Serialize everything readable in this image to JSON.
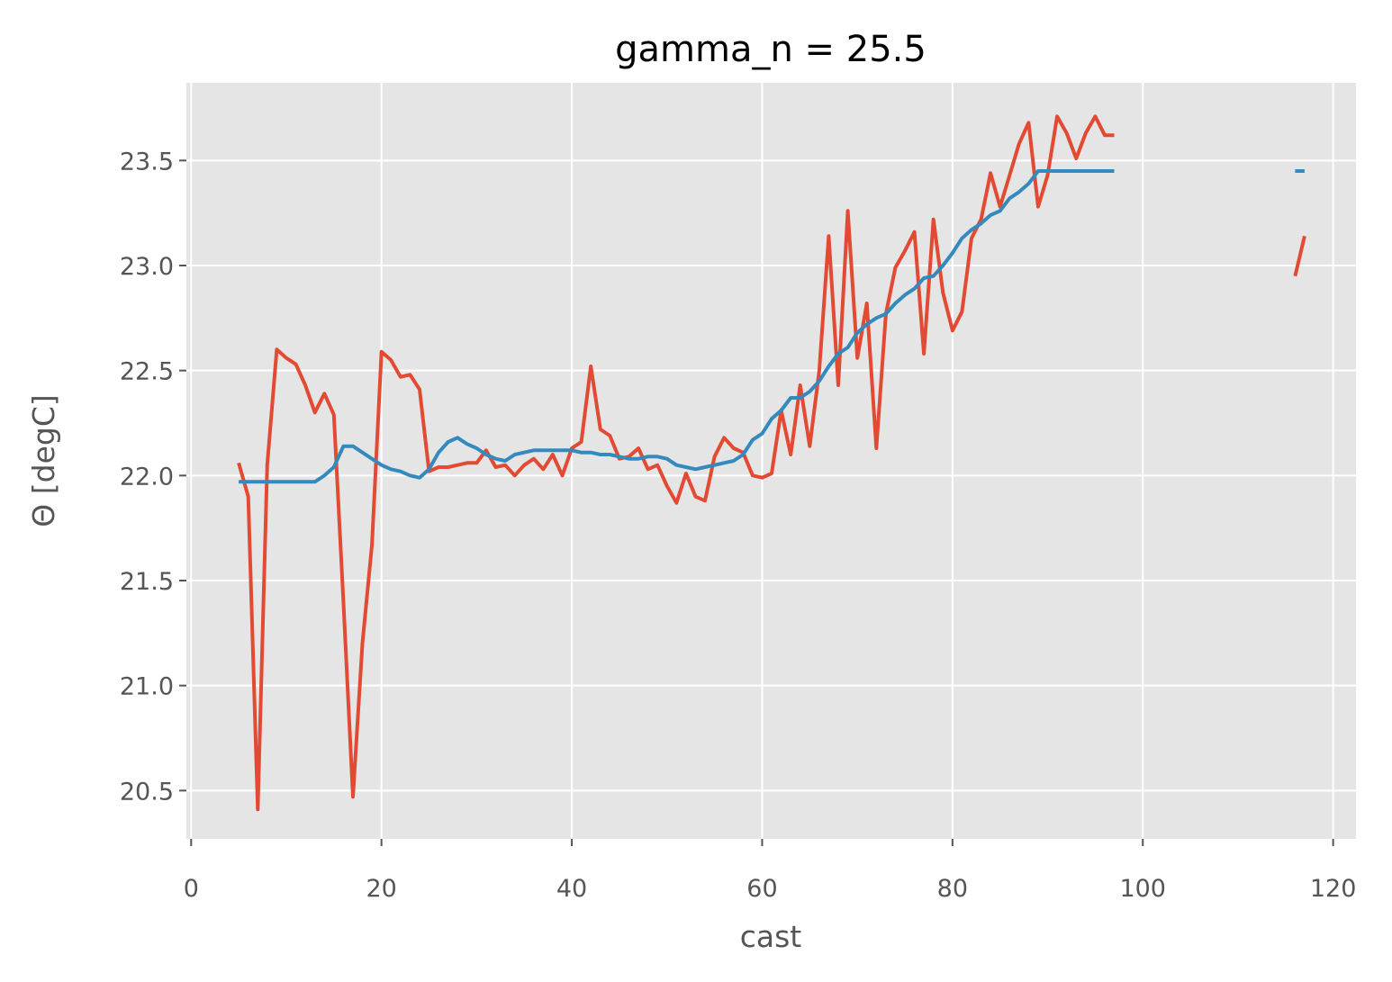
{
  "chart_data": {
    "type": "line",
    "title": "gamma_n = 25.5",
    "xlabel": "cast",
    "ylabel": "Θ [degC]",
    "x": [
      5,
      6,
      7,
      8,
      9,
      10,
      11,
      12,
      13,
      14,
      15,
      16,
      17,
      18,
      19,
      20,
      21,
      22,
      23,
      24,
      25,
      26,
      27,
      28,
      29,
      30,
      31,
      32,
      33,
      34,
      35,
      36,
      37,
      38,
      39,
      40,
      41,
      42,
      43,
      44,
      45,
      46,
      47,
      48,
      49,
      50,
      51,
      52,
      53,
      54,
      55,
      56,
      57,
      58,
      59,
      60,
      61,
      62,
      63,
      64,
      65,
      66,
      67,
      68,
      69,
      70,
      71,
      72,
      73,
      74,
      75,
      76,
      77,
      78,
      79,
      80,
      81,
      82,
      83,
      84,
      85,
      86,
      87,
      88,
      89,
      90,
      91,
      92,
      93,
      94,
      95,
      96,
      97,
      98,
      99,
      100,
      101,
      102,
      103,
      104,
      105,
      106,
      107,
      108,
      109,
      110,
      111,
      112,
      113,
      114,
      115,
      116,
      117
    ],
    "series": [
      {
        "color": "#E24A33",
        "values": [
          22.06,
          21.9,
          20.41,
          22.05,
          22.6,
          22.56,
          22.53,
          22.43,
          22.3,
          22.39,
          22.29,
          21.4,
          20.47,
          21.2,
          21.67,
          22.59,
          22.55,
          22.47,
          22.48,
          22.41,
          22.02,
          22.04,
          22.04,
          22.05,
          22.06,
          22.06,
          22.12,
          22.04,
          22.05,
          22.0,
          22.05,
          22.08,
          22.03,
          22.1,
          22.0,
          22.13,
          22.16,
          22.52,
          22.22,
          22.19,
          22.08,
          22.09,
          22.13,
          22.03,
          22.05,
          21.95,
          21.87,
          22.01,
          21.9,
          21.88,
          22.09,
          22.18,
          22.13,
          22.11,
          22.0,
          21.99,
          22.01,
          22.31,
          22.1,
          22.43,
          22.14,
          22.5,
          23.14,
          22.43,
          23.26,
          22.56,
          22.82,
          22.13,
          22.77,
          22.99,
          23.07,
          23.16,
          22.58,
          23.22,
          22.87,
          22.69,
          22.78,
          23.13,
          23.22,
          23.44,
          23.28,
          23.43,
          23.58,
          23.68,
          23.28,
          23.43,
          23.71,
          23.63,
          23.51,
          23.63,
          23.71,
          23.62,
          23.62,
          null,
          null,
          null,
          null,
          null,
          null,
          null,
          null,
          null,
          null,
          null,
          null,
          null,
          null,
          null,
          null,
          null,
          null,
          22.95,
          23.14
        ]
      },
      {
        "color": "#348ABD",
        "values": [
          21.97,
          21.97,
          21.97,
          21.97,
          21.97,
          21.97,
          21.97,
          21.97,
          21.97,
          22.0,
          22.04,
          22.14,
          22.14,
          22.11,
          22.08,
          22.05,
          22.03,
          22.02,
          22.0,
          21.99,
          22.03,
          22.11,
          22.16,
          22.18,
          22.15,
          22.13,
          22.1,
          22.08,
          22.07,
          22.1,
          22.11,
          22.12,
          22.12,
          22.12,
          22.12,
          22.12,
          22.11,
          22.11,
          22.1,
          22.1,
          22.09,
          22.08,
          22.08,
          22.09,
          22.09,
          22.08,
          22.05,
          22.04,
          22.03,
          22.04,
          22.05,
          22.06,
          22.07,
          22.1,
          22.17,
          22.2,
          22.27,
          22.31,
          22.37,
          22.37,
          22.4,
          22.45,
          22.52,
          22.58,
          22.61,
          22.68,
          22.72,
          22.75,
          22.77,
          22.82,
          22.86,
          22.89,
          22.94,
          22.95,
          23.0,
          23.06,
          23.13,
          23.17,
          23.2,
          23.24,
          23.26,
          23.32,
          23.35,
          23.39,
          23.45,
          23.45,
          23.45,
          23.45,
          23.45,
          23.45,
          23.45,
          23.45,
          23.45,
          null,
          null,
          null,
          null,
          null,
          null,
          null,
          null,
          null,
          null,
          null,
          null,
          null,
          null,
          null,
          null,
          null,
          null,
          23.45,
          23.45
        ]
      }
    ],
    "xlim": [
      -0.5,
      122.4
    ],
    "ylim": [
      20.27,
      23.87
    ],
    "xticks": [
      0,
      20,
      40,
      60,
      80,
      100,
      120
    ],
    "yticks": [
      20.5,
      {
        "value": 21,
        "label": "21.0"
      },
      21.5,
      {
        "value": 22,
        "label": "22.0"
      },
      22.5,
      {
        "value": 23,
        "label": "23.0"
      },
      23.5
    ],
    "grid": true
  }
}
